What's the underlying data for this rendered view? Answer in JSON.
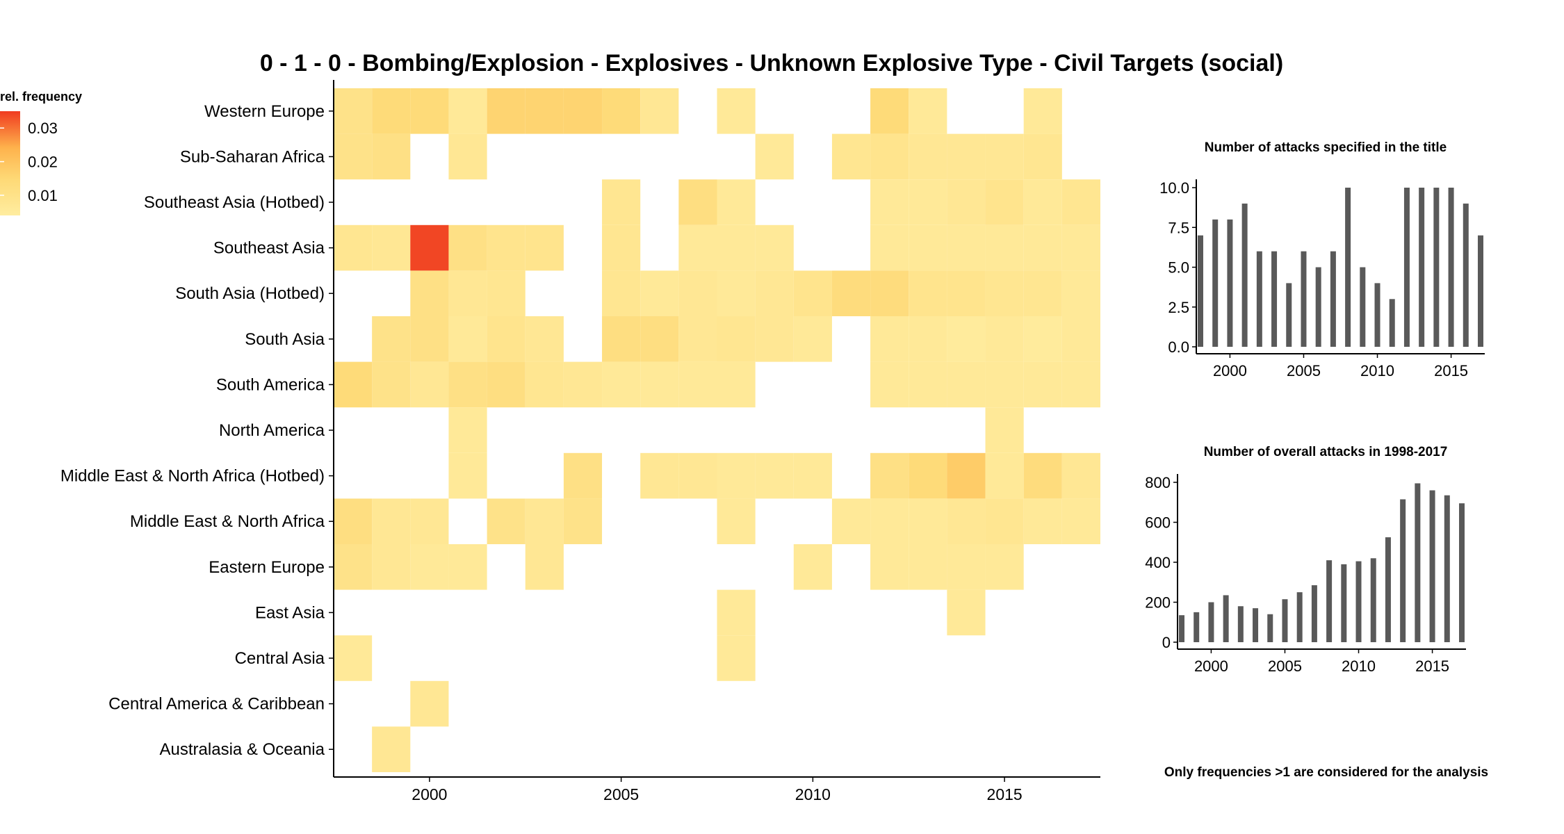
{
  "title": "0 - 1 - 0 - Bombing/Explosion - Explosives - Unknown Explosive Type - Civil Targets (social)",
  "footnote": "Only frequencies >1 are considered for the analysis",
  "colors": {
    "low": "#ffeda0",
    "mid": "#feb24c",
    "high": "#f03b20",
    "bar": "#595959"
  },
  "legend": {
    "title": "rel. frequency",
    "ticks": [
      0.01,
      0.02,
      0.03
    ],
    "tick_labels": [
      "0.01",
      "0.02",
      "0.03"
    ],
    "range": [
      0.004,
      0.035
    ]
  },
  "chart_data": [
    {
      "type": "heatmap",
      "title": "0 - 1 - 0 - Bombing/Explosion - Explosives - Unknown Explosive Type - Civil Targets (social)",
      "x_ticks": [
        2000,
        2005,
        2010,
        2015
      ],
      "x_range": [
        1997.5,
        2017.5
      ],
      "rows": [
        "Western Europe",
        "Sub-Saharan Africa",
        "Southeast Asia (Hotbed)",
        "Southeast Asia",
        "South Asia (Hotbed)",
        "South Asia",
        "South America",
        "North America",
        "Middle East & North Africa (Hotbed)",
        "Middle East & North Africa",
        "Eastern Europe",
        "East Asia",
        "Central Asia",
        "Central America & Caribbean",
        "Australasia & Oceania"
      ],
      "cells": [
        {
          "row": "Western Europe",
          "year": 1998,
          "value": 0.01
        },
        {
          "row": "Western Europe",
          "year": 1999,
          "value": 0.014
        },
        {
          "row": "Western Europe",
          "year": 2000,
          "value": 0.014
        },
        {
          "row": "Western Europe",
          "year": 2001,
          "value": 0.006
        },
        {
          "row": "Western Europe",
          "year": 2002,
          "value": 0.016
        },
        {
          "row": "Western Europe",
          "year": 2003,
          "value": 0.016
        },
        {
          "row": "Western Europe",
          "year": 2004,
          "value": 0.016
        },
        {
          "row": "Western Europe",
          "year": 2005,
          "value": 0.014
        },
        {
          "row": "Western Europe",
          "year": 2006,
          "value": 0.007
        },
        {
          "row": "Western Europe",
          "year": 2008,
          "value": 0.006
        },
        {
          "row": "Western Europe",
          "year": 2012,
          "value": 0.014
        },
        {
          "row": "Western Europe",
          "year": 2013,
          "value": 0.006
        },
        {
          "row": "Western Europe",
          "year": 2016,
          "value": 0.006
        },
        {
          "row": "Sub-Saharan Africa",
          "year": 1998,
          "value": 0.01
        },
        {
          "row": "Sub-Saharan Africa",
          "year": 1999,
          "value": 0.011
        },
        {
          "row": "Sub-Saharan Africa",
          "year": 2001,
          "value": 0.007
        },
        {
          "row": "Sub-Saharan Africa",
          "year": 2009,
          "value": 0.006
        },
        {
          "row": "Sub-Saharan Africa",
          "year": 2011,
          "value": 0.008
        },
        {
          "row": "Sub-Saharan Africa",
          "year": 2012,
          "value": 0.009
        },
        {
          "row": "Sub-Saharan Africa",
          "year": 2013,
          "value": 0.007
        },
        {
          "row": "Sub-Saharan Africa",
          "year": 2014,
          "value": 0.007
        },
        {
          "row": "Sub-Saharan Africa",
          "year": 2015,
          "value": 0.007
        },
        {
          "row": "Sub-Saharan Africa",
          "year": 2016,
          "value": 0.008
        },
        {
          "row": "Southeast Asia (Hotbed)",
          "year": 2005,
          "value": 0.008
        },
        {
          "row": "Southeast Asia (Hotbed)",
          "year": 2007,
          "value": 0.012
        },
        {
          "row": "Southeast Asia (Hotbed)",
          "year": 2008,
          "value": 0.006
        },
        {
          "row": "Southeast Asia (Hotbed)",
          "year": 2012,
          "value": 0.006
        },
        {
          "row": "Southeast Asia (Hotbed)",
          "year": 2013,
          "value": 0.006
        },
        {
          "row": "Southeast Asia (Hotbed)",
          "year": 2014,
          "value": 0.007
        },
        {
          "row": "Southeast Asia (Hotbed)",
          "year": 2015,
          "value": 0.009
        },
        {
          "row": "Southeast Asia (Hotbed)",
          "year": 2016,
          "value": 0.006
        },
        {
          "row": "Southeast Asia (Hotbed)",
          "year": 2017,
          "value": 0.008
        },
        {
          "row": "Southeast Asia",
          "year": 1998,
          "value": 0.008
        },
        {
          "row": "Southeast Asia",
          "year": 1999,
          "value": 0.007
        },
        {
          "row": "Southeast Asia",
          "year": 2000,
          "value": 0.034
        },
        {
          "row": "Southeast Asia",
          "year": 2001,
          "value": 0.011
        },
        {
          "row": "Southeast Asia",
          "year": 2002,
          "value": 0.009
        },
        {
          "row": "Southeast Asia",
          "year": 2003,
          "value": 0.009
        },
        {
          "row": "Southeast Asia",
          "year": 2005,
          "value": 0.008
        },
        {
          "row": "Southeast Asia",
          "year": 2007,
          "value": 0.006
        },
        {
          "row": "Southeast Asia",
          "year": 2008,
          "value": 0.006
        },
        {
          "row": "Southeast Asia",
          "year": 2009,
          "value": 0.006
        },
        {
          "row": "Southeast Asia",
          "year": 2012,
          "value": 0.006
        },
        {
          "row": "Southeast Asia",
          "year": 2013,
          "value": 0.006
        },
        {
          "row": "Southeast Asia",
          "year": 2014,
          "value": 0.006
        },
        {
          "row": "Southeast Asia",
          "year": 2015,
          "value": 0.006
        },
        {
          "row": "Southeast Asia",
          "year": 2016,
          "value": 0.006
        },
        {
          "row": "Southeast Asia",
          "year": 2017,
          "value": 0.006
        },
        {
          "row": "South Asia (Hotbed)",
          "year": 2000,
          "value": 0.011
        },
        {
          "row": "South Asia (Hotbed)",
          "year": 2001,
          "value": 0.007
        },
        {
          "row": "South Asia (Hotbed)",
          "year": 2002,
          "value": 0.008
        },
        {
          "row": "South Asia (Hotbed)",
          "year": 2005,
          "value": 0.008
        },
        {
          "row": "South Asia (Hotbed)",
          "year": 2006,
          "value": 0.006
        },
        {
          "row": "South Asia (Hotbed)",
          "year": 2007,
          "value": 0.007
        },
        {
          "row": "South Asia (Hotbed)",
          "year": 2008,
          "value": 0.006
        },
        {
          "row": "South Asia (Hotbed)",
          "year": 2009,
          "value": 0.007
        },
        {
          "row": "South Asia (Hotbed)",
          "year": 2010,
          "value": 0.009
        },
        {
          "row": "South Asia (Hotbed)",
          "year": 2011,
          "value": 0.013
        },
        {
          "row": "South Asia (Hotbed)",
          "year": 2012,
          "value": 0.013
        },
        {
          "row": "South Asia (Hotbed)",
          "year": 2013,
          "value": 0.009
        },
        {
          "row": "South Asia (Hotbed)",
          "year": 2014,
          "value": 0.009
        },
        {
          "row": "South Asia (Hotbed)",
          "year": 2015,
          "value": 0.008
        },
        {
          "row": "South Asia (Hotbed)",
          "year": 2016,
          "value": 0.008
        },
        {
          "row": "South Asia (Hotbed)",
          "year": 2017,
          "value": 0.006
        },
        {
          "row": "South Asia",
          "year": 1999,
          "value": 0.01
        },
        {
          "row": "South Asia",
          "year": 2000,
          "value": 0.011
        },
        {
          "row": "South Asia",
          "year": 2001,
          "value": 0.006
        },
        {
          "row": "South Asia",
          "year": 2002,
          "value": 0.009
        },
        {
          "row": "South Asia",
          "year": 2003,
          "value": 0.007
        },
        {
          "row": "South Asia",
          "year": 2005,
          "value": 0.012
        },
        {
          "row": "South Asia",
          "year": 2006,
          "value": 0.012
        },
        {
          "row": "South Asia",
          "year": 2007,
          "value": 0.007
        },
        {
          "row": "South Asia",
          "year": 2008,
          "value": 0.008
        },
        {
          "row": "South Asia",
          "year": 2009,
          "value": 0.007
        },
        {
          "row": "South Asia",
          "year": 2010,
          "value": 0.006
        },
        {
          "row": "South Asia",
          "year": 2012,
          "value": 0.006
        },
        {
          "row": "South Asia",
          "year": 2013,
          "value": 0.006
        },
        {
          "row": "South Asia",
          "year": 2014,
          "value": 0.005
        },
        {
          "row": "South Asia",
          "year": 2015,
          "value": 0.006
        },
        {
          "row": "South Asia",
          "year": 2016,
          "value": 0.005
        },
        {
          "row": "South Asia",
          "year": 2017,
          "value": 0.006
        },
        {
          "row": "South America",
          "year": 1998,
          "value": 0.014
        },
        {
          "row": "South America",
          "year": 1999,
          "value": 0.01
        },
        {
          "row": "South America",
          "year": 2000,
          "value": 0.007
        },
        {
          "row": "South America",
          "year": 2001,
          "value": 0.011
        },
        {
          "row": "South America",
          "year": 2002,
          "value": 0.012
        },
        {
          "row": "South America",
          "year": 2003,
          "value": 0.008
        },
        {
          "row": "South America",
          "year": 2004,
          "value": 0.007
        },
        {
          "row": "South America",
          "year": 2005,
          "value": 0.006
        },
        {
          "row": "South America",
          "year": 2006,
          "value": 0.006
        },
        {
          "row": "South America",
          "year": 2007,
          "value": 0.006
        },
        {
          "row": "South America",
          "year": 2008,
          "value": 0.006
        },
        {
          "row": "South America",
          "year": 2012,
          "value": 0.006
        },
        {
          "row": "South America",
          "year": 2013,
          "value": 0.006
        },
        {
          "row": "South America",
          "year": 2014,
          "value": 0.006
        },
        {
          "row": "South America",
          "year": 2015,
          "value": 0.006
        },
        {
          "row": "South America",
          "year": 2016,
          "value": 0.006
        },
        {
          "row": "South America",
          "year": 2017,
          "value": 0.006
        },
        {
          "row": "North America",
          "year": 2001,
          "value": 0.006
        },
        {
          "row": "North America",
          "year": 2015,
          "value": 0.006
        },
        {
          "row": "Middle East & North Africa (Hotbed)",
          "year": 2001,
          "value": 0.006
        },
        {
          "row": "Middle East & North Africa (Hotbed)",
          "year": 2004,
          "value": 0.011
        },
        {
          "row": "Middle East & North Africa (Hotbed)",
          "year": 2006,
          "value": 0.007
        },
        {
          "row": "Middle East & North Africa (Hotbed)",
          "year": 2007,
          "value": 0.007
        },
        {
          "row": "Middle East & North Africa (Hotbed)",
          "year": 2008,
          "value": 0.006
        },
        {
          "row": "Middle East & North Africa (Hotbed)",
          "year": 2009,
          "value": 0.006
        },
        {
          "row": "Middle East & North Africa (Hotbed)",
          "year": 2010,
          "value": 0.006
        },
        {
          "row": "Middle East & North Africa (Hotbed)",
          "year": 2012,
          "value": 0.011
        },
        {
          "row": "Middle East & North Africa (Hotbed)",
          "year": 2013,
          "value": 0.014
        },
        {
          "row": "Middle East & North Africa (Hotbed)",
          "year": 2014,
          "value": 0.018
        },
        {
          "row": "Middle East & North Africa (Hotbed)",
          "year": 2015,
          "value": 0.006
        },
        {
          "row": "Middle East & North Africa (Hotbed)",
          "year": 2016,
          "value": 0.013
        },
        {
          "row": "Middle East & North Africa (Hotbed)",
          "year": 2017,
          "value": 0.007
        },
        {
          "row": "Middle East & North Africa",
          "year": 1998,
          "value": 0.012
        },
        {
          "row": "Middle East & North Africa",
          "year": 1999,
          "value": 0.007
        },
        {
          "row": "Middle East & North Africa",
          "year": 2000,
          "value": 0.007
        },
        {
          "row": "Middle East & North Africa",
          "year": 2002,
          "value": 0.01
        },
        {
          "row": "Middle East & North Africa",
          "year": 2003,
          "value": 0.007
        },
        {
          "row": "Middle East & North Africa",
          "year": 2004,
          "value": 0.01
        },
        {
          "row": "Middle East & North Africa",
          "year": 2008,
          "value": 0.006
        },
        {
          "row": "Middle East & North Africa",
          "year": 2011,
          "value": 0.006
        },
        {
          "row": "Middle East & North Africa",
          "year": 2012,
          "value": 0.006
        },
        {
          "row": "Middle East & North Africa",
          "year": 2013,
          "value": 0.006
        },
        {
          "row": "Middle East & North Africa",
          "year": 2014,
          "value": 0.007
        },
        {
          "row": "Middle East & North Africa",
          "year": 2015,
          "value": 0.008
        },
        {
          "row": "Middle East & North Africa",
          "year": 2016,
          "value": 0.006
        },
        {
          "row": "Middle East & North Africa",
          "year": 2017,
          "value": 0.006
        },
        {
          "row": "Eastern Europe",
          "year": 1998,
          "value": 0.01
        },
        {
          "row": "Eastern Europe",
          "year": 1999,
          "value": 0.007
        },
        {
          "row": "Eastern Europe",
          "year": 2000,
          "value": 0.006
        },
        {
          "row": "Eastern Europe",
          "year": 2001,
          "value": 0.006
        },
        {
          "row": "Eastern Europe",
          "year": 2003,
          "value": 0.007
        },
        {
          "row": "Eastern Europe",
          "year": 2010,
          "value": 0.006
        },
        {
          "row": "Eastern Europe",
          "year": 2012,
          "value": 0.006
        },
        {
          "row": "Eastern Europe",
          "year": 2013,
          "value": 0.006
        },
        {
          "row": "Eastern Europe",
          "year": 2014,
          "value": 0.006
        },
        {
          "row": "Eastern Europe",
          "year": 2015,
          "value": 0.006
        },
        {
          "row": "East Asia",
          "year": 2008,
          "value": 0.006
        },
        {
          "row": "East Asia",
          "year": 2014,
          "value": 0.006
        },
        {
          "row": "Central Asia",
          "year": 1998,
          "value": 0.006
        },
        {
          "row": "Central Asia",
          "year": 2008,
          "value": 0.006
        },
        {
          "row": "Central America & Caribbean",
          "year": 2000,
          "value": 0.007
        },
        {
          "row": "Australasia & Oceania",
          "year": 1999,
          "value": 0.007
        }
      ]
    },
    {
      "type": "bar",
      "title": "Number of attacks specified in the title",
      "x": [
        1998,
        1999,
        2000,
        2001,
        2002,
        2003,
        2004,
        2005,
        2006,
        2007,
        2008,
        2009,
        2010,
        2011,
        2012,
        2013,
        2014,
        2015,
        2016,
        2017
      ],
      "values": [
        7,
        8,
        8,
        9,
        6,
        6,
        4,
        6,
        5,
        6,
        10,
        5,
        4,
        3,
        10,
        10,
        10,
        10,
        9,
        7
      ],
      "ylim": [
        0,
        10
      ],
      "y_ticks": [
        "0.0",
        "2.5",
        "5.0",
        "7.5",
        "10.0"
      ],
      "x_ticks": [
        2000,
        2005,
        2010,
        2015
      ]
    },
    {
      "type": "bar",
      "title": "Number of overall attacks in 1998-2017",
      "x": [
        1998,
        1999,
        2000,
        2001,
        2002,
        2003,
        2004,
        2005,
        2006,
        2007,
        2008,
        2009,
        2010,
        2011,
        2012,
        2013,
        2014,
        2015,
        2016,
        2017
      ],
      "values": [
        135,
        150,
        200,
        235,
        180,
        170,
        140,
        215,
        250,
        285,
        410,
        390,
        405,
        420,
        525,
        715,
        795,
        760,
        735,
        695
      ],
      "ylim": [
        0,
        800
      ],
      "y_ticks": [
        "0",
        "200",
        "400",
        "600",
        "800"
      ],
      "x_ticks": [
        2000,
        2005,
        2010,
        2015
      ]
    }
  ]
}
